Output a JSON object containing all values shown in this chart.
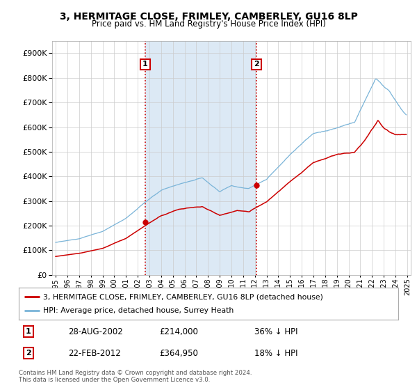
{
  "title": "3, HERMITAGE CLOSE, FRIMLEY, CAMBERLEY, GU16 8LP",
  "subtitle": "Price paid vs. HM Land Registry's House Price Index (HPI)",
  "legend_line1": "3, HERMITAGE CLOSE, FRIMLEY, CAMBERLEY, GU16 8LP (detached house)",
  "legend_line2": "HPI: Average price, detached house, Surrey Heath",
  "footnote": "Contains HM Land Registry data © Crown copyright and database right 2024.\nThis data is licensed under the Open Government Licence v3.0.",
  "sale1_date": "28-AUG-2002",
  "sale1_price": "£214,000",
  "sale1_hpi": "36% ↓ HPI",
  "sale2_date": "22-FEB-2012",
  "sale2_price": "£364,950",
  "sale2_hpi": "18% ↓ HPI",
  "sale1_x": 2002.65,
  "sale1_y": 214000,
  "sale2_x": 2012.14,
  "sale2_y": 364950,
  "hpi_color": "#7ab4d8",
  "price_color": "#cc0000",
  "vline_color": "#cc0000",
  "bg_color": "#dce9f5",
  "ylim": [
    0,
    950000
  ],
  "xlim_start": 1994.7,
  "xlim_end": 2025.3
}
